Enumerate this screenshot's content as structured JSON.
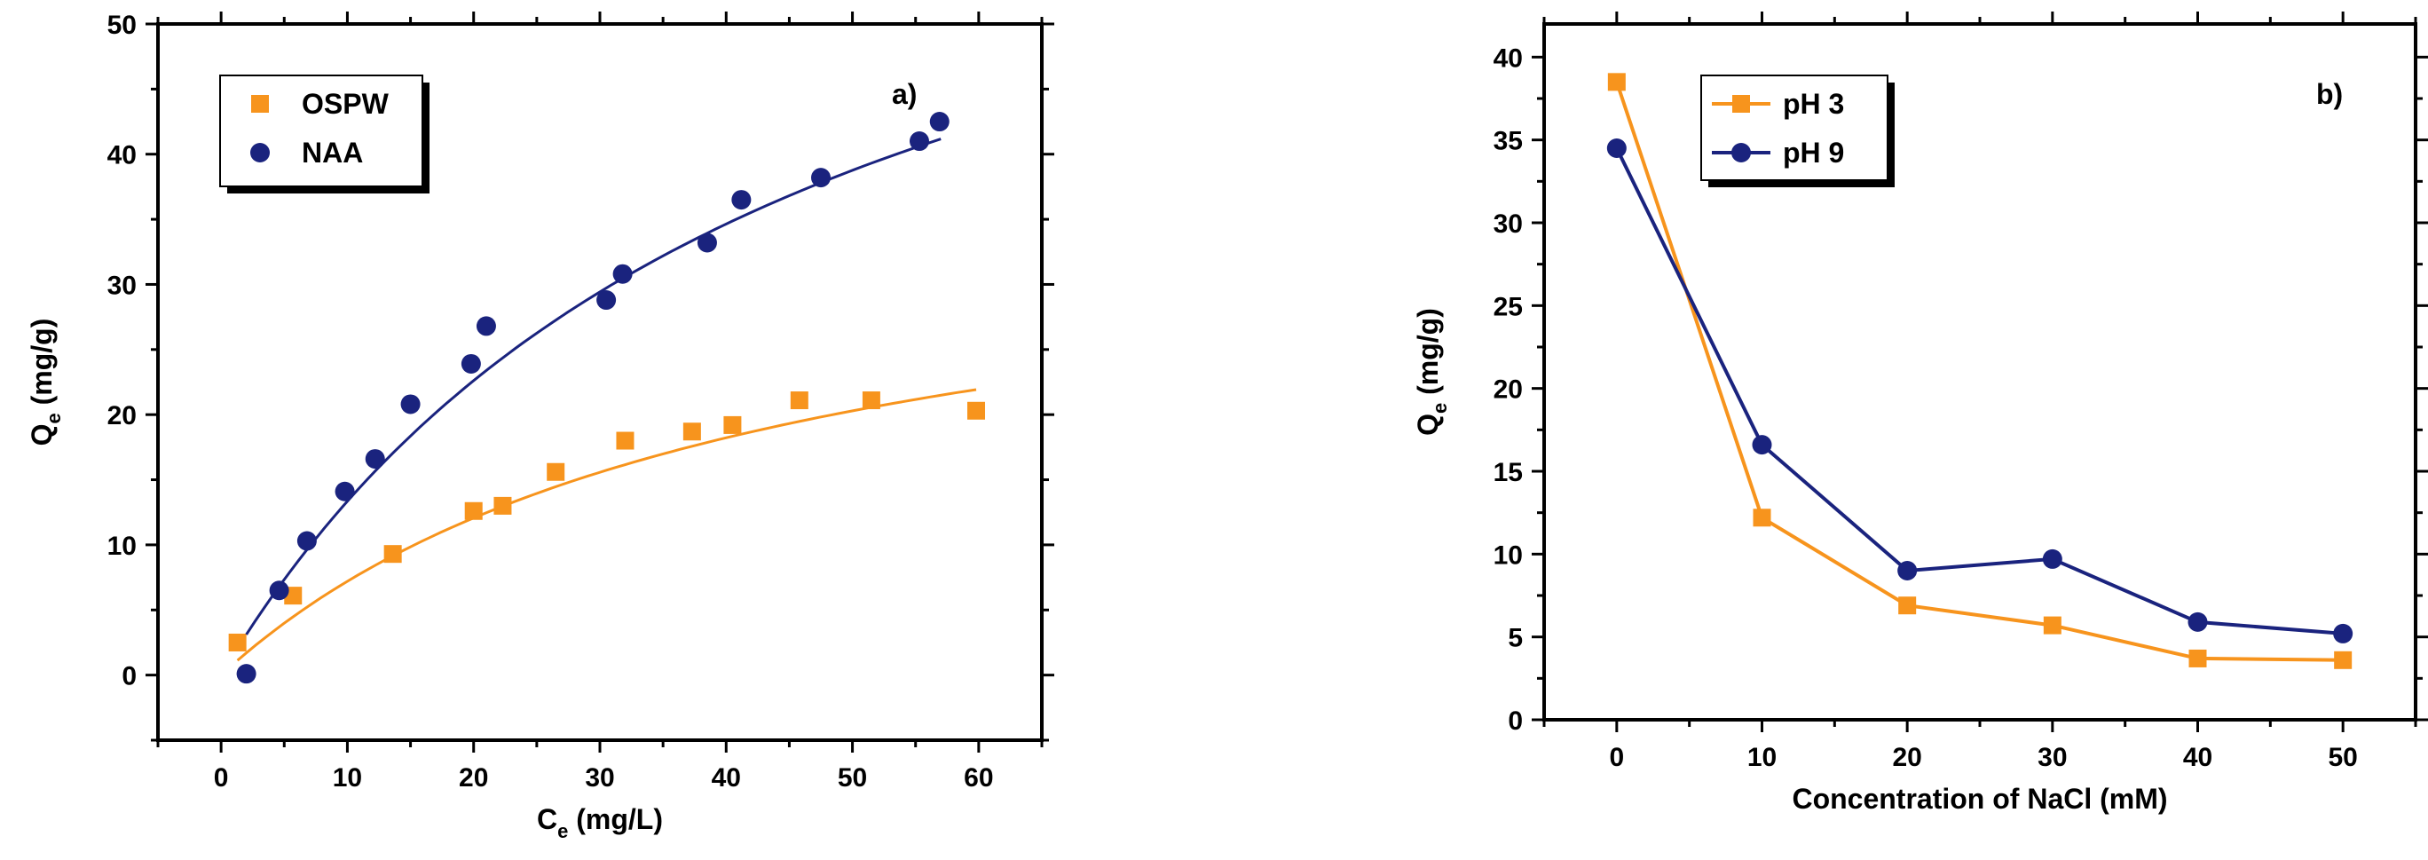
{
  "chart_data": [
    {
      "type": "scatter",
      "panel_label": "a)",
      "xlabel": "C",
      "xlabel_sub": "e",
      "xlabel_unit": " (mg/L)",
      "ylabel": "Q",
      "ylabel_sub": "e",
      "ylabel_unit": " (mg/g)",
      "xlim": [
        -5,
        65
      ],
      "ylim": [
        -5,
        50
      ],
      "xticks": [
        0,
        10,
        20,
        30,
        40,
        50,
        60
      ],
      "yticks": [
        0,
        10,
        20,
        30,
        40,
        50
      ],
      "legend_position": "top-left",
      "series": [
        {
          "name": "OSPW",
          "marker": "square",
          "color": "#f7941d",
          "x": [
            1.3,
            5.7,
            13.6,
            20.0,
            22.3,
            26.5,
            32.0,
            37.3,
            40.5,
            45.8,
            51.5,
            59.8
          ],
          "y": [
            2.5,
            6.1,
            9.3,
            12.6,
            13.0,
            15.6,
            18.0,
            18.7,
            19.2,
            21.1,
            21.1,
            20.3
          ],
          "fit": {
            "model": "langmuir",
            "qmax": 37.2,
            "K": 0.024,
            "xmin": 1.3,
            "xmax": 59.8
          }
        },
        {
          "name": "NAA",
          "marker": "circle",
          "color": "#1a237e",
          "x": [
            2.0,
            4.6,
            6.8,
            9.8,
            12.2,
            15.0,
            19.8,
            21.0,
            30.5,
            31.8,
            38.5,
            41.2,
            47.5,
            55.3,
            56.9
          ],
          "y": [
            0.1,
            6.5,
            10.3,
            14.1,
            16.6,
            20.8,
            23.9,
            26.8,
            28.8,
            30.8,
            33.2,
            36.5,
            38.2,
            41.0,
            42.5
          ],
          "fit": {
            "model": "langmuir",
            "qmax": 74.0,
            "K": 0.022,
            "xmin": 2.0,
            "xmax": 57.0
          }
        }
      ]
    },
    {
      "type": "line",
      "panel_label": "b)",
      "xlabel": "Concentration of NaCl (mM)",
      "ylabel": "Q",
      "ylabel_sub": "e",
      "ylabel_unit": " (mg/g)",
      "xlim": [
        -5,
        55
      ],
      "ylim": [
        0,
        42
      ],
      "xticks": [
        0,
        10,
        20,
        30,
        40,
        50
      ],
      "yticks": [
        0,
        5,
        10,
        15,
        20,
        25,
        30,
        35,
        40
      ],
      "legend_position": "top-left",
      "series": [
        {
          "name": "pH 3",
          "marker": "square",
          "color": "#f7941d",
          "x": [
            0,
            10,
            20,
            30,
            40,
            50
          ],
          "y": [
            38.5,
            12.2,
            6.9,
            5.7,
            3.7,
            3.6
          ]
        },
        {
          "name": "pH 9",
          "marker": "circle",
          "color": "#1a237e",
          "x": [
            0,
            10,
            20,
            30,
            40,
            50
          ],
          "y": [
            34.5,
            16.6,
            9.0,
            9.7,
            5.9,
            5.2
          ]
        }
      ]
    }
  ]
}
